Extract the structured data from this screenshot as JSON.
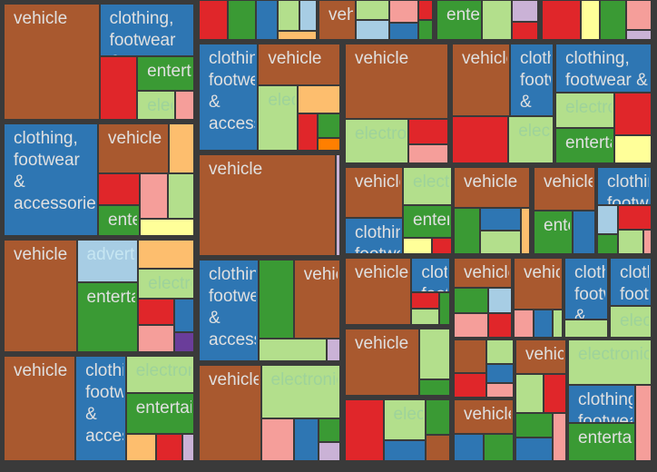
{
  "chart_data": {
    "type": "treemap",
    "title": "",
    "colors": {
      "vehicle": "#a9592f",
      "clothing": "#2e76b3",
      "entertainment": "#3a9a34",
      "electronics": "#b3df8c",
      "advertising": "#a7cde4",
      "red": "#e0262a",
      "pink": "#f59e9a",
      "orange": "#fdbe6e",
      "yellow": "#ffff99",
      "purple": "#6a3d9a",
      "lavender": "#cab2d6",
      "darkorange": "#ff7f00"
    },
    "label_colors": {
      "vehicle": "#e0e0e0",
      "clothing": "#e0e0e0",
      "entertainment": "#e0e0e0",
      "electronics": "#9ed39a",
      "advertising": "#c6e6f2"
    },
    "labels": {
      "vehicle": "vehicle",
      "clothing": "clothing, footwear & accessories",
      "entertainment": "entertainment",
      "electronics": "electronics",
      "advertising": "advertising"
    },
    "panels": [
      {
        "group": 1,
        "tiles": [
          {
            "cat": "vehicle",
            "value": 360
          },
          {
            "cat": "clothing",
            "value": 160
          },
          {
            "cat": "red",
            "value": 78
          },
          {
            "cat": "entertainment",
            "value": 64
          },
          {
            "cat": "electronics",
            "value": 36
          },
          {
            "cat": "pink",
            "value": 18
          }
        ]
      },
      {
        "group": 2,
        "tiles": [
          {
            "cat": "clothing",
            "value": 330
          },
          {
            "cat": "vehicle",
            "value": 110
          },
          {
            "cat": "orange",
            "value": 40
          },
          {
            "cat": "red",
            "value": 40
          },
          {
            "cat": "entertainment",
            "value": 40
          },
          {
            "cat": "pink",
            "value": 40
          },
          {
            "cat": "electronics",
            "value": 36
          },
          {
            "cat": "yellow",
            "value": 30
          }
        ]
      },
      {
        "group": 3,
        "tiles": [
          {
            "cat": "vehicle",
            "value": 250
          },
          {
            "cat": "advertising",
            "value": 80
          },
          {
            "cat": "entertainment",
            "value": 130
          },
          {
            "cat": "orange",
            "value": 50
          },
          {
            "cat": "electronics",
            "value": 50
          },
          {
            "cat": "red",
            "value": 30
          },
          {
            "cat": "pink",
            "value": 30
          },
          {
            "cat": "clothing",
            "value": 20
          },
          {
            "cat": "purple",
            "value": 12
          }
        ]
      },
      {
        "group": 4,
        "tiles": [
          {
            "cat": "vehicle",
            "value": 270
          },
          {
            "cat": "clothing",
            "value": 190
          },
          {
            "cat": "electronics",
            "value": 90
          },
          {
            "cat": "entertainment",
            "value": 100
          },
          {
            "cat": "orange",
            "value": 30
          },
          {
            "cat": "red",
            "value": 25
          },
          {
            "cat": "lavender",
            "value": 12
          }
        ]
      },
      {
        "group": 5,
        "tiles": [
          {
            "cat": "red",
            "value": 40
          },
          {
            "cat": "entertainment",
            "value": 38
          },
          {
            "cat": "clothing",
            "value": 30
          },
          {
            "cat": "electronics",
            "value": 24
          },
          {
            "cat": "advertising",
            "value": 18
          },
          {
            "cat": "orange",
            "value": 12
          }
        ]
      },
      {
        "group": 6,
        "tiles": [
          {
            "cat": "vehicle",
            "value": 90
          },
          {
            "cat": "electronics",
            "value": 40
          },
          {
            "cat": "advertising",
            "value": 40
          },
          {
            "cat": "pink",
            "value": 40
          },
          {
            "cat": "clothing",
            "value": 30
          },
          {
            "cat": "red",
            "value": 18
          },
          {
            "cat": "entertainment",
            "value": 18
          }
        ]
      },
      {
        "group": 7,
        "tiles": [
          {
            "cat": "entertainment",
            "value": 45
          },
          {
            "cat": "electronics",
            "value": 30
          },
          {
            "cat": "lavender",
            "value": 14
          },
          {
            "cat": "red",
            "value": 12
          }
        ]
      },
      {
        "group": 8,
        "tiles": [
          {
            "cat": "red",
            "value": 60
          },
          {
            "cat": "yellow",
            "value": 30
          },
          {
            "cat": "entertainment",
            "value": 40
          },
          {
            "cat": "pink",
            "value": 30
          },
          {
            "cat": "lavender",
            "value": 10
          }
        ]
      },
      {
        "group": 9,
        "tiles": [
          {
            "cat": "clothing",
            "value": 220
          },
          {
            "cat": "vehicle",
            "value": 120
          },
          {
            "cat": "electronics",
            "value": 90
          },
          {
            "cat": "orange",
            "value": 40
          },
          {
            "cat": "red",
            "value": 25
          },
          {
            "cat": "entertainment",
            "value": 20
          },
          {
            "cat": "darkorange",
            "value": 10
          }
        ]
      },
      {
        "group": 10,
        "tiles": [
          {
            "cat": "vehicle",
            "value": 360
          },
          {
            "cat": "lavender",
            "value": 12
          }
        ]
      },
      {
        "group": 11,
        "tiles": [
          {
            "cat": "clothing",
            "value": 200
          },
          {
            "cat": "entertainment",
            "value": 90
          },
          {
            "cat": "vehicle",
            "value": 120
          },
          {
            "cat": "electronics",
            "value": 50
          },
          {
            "cat": "lavender",
            "value": 10
          }
        ]
      },
      {
        "group": 12,
        "tiles": [
          {
            "cat": "vehicle",
            "value": 170
          },
          {
            "cat": "electronics",
            "value": 120
          },
          {
            "cat": "pink",
            "value": 40
          },
          {
            "cat": "clothing",
            "value": 30
          },
          {
            "cat": "entertainment",
            "value": 15
          },
          {
            "cat": "lavender",
            "value": 12
          }
        ]
      },
      {
        "group": 13,
        "tiles": [
          {
            "cat": "vehicle",
            "value": 300
          },
          {
            "cat": "electronics",
            "value": 110
          },
          {
            "cat": "red",
            "value": 40
          },
          {
            "cat": "pink",
            "value": 30
          }
        ]
      },
      {
        "group": 14,
        "tiles": [
          {
            "cat": "vehicle",
            "value": 110
          },
          {
            "cat": "clothing",
            "value": 80
          },
          {
            "cat": "electronics",
            "value": 70
          },
          {
            "cat": "entertainment",
            "value": 60
          },
          {
            "cat": "yellow",
            "value": 18
          },
          {
            "cat": "red",
            "value": 12
          }
        ]
      },
      {
        "group": 15,
        "tiles": [
          {
            "cat": "vehicle",
            "value": 200
          },
          {
            "cat": "clothing",
            "value": 60
          },
          {
            "cat": "red",
            "value": 20
          },
          {
            "cat": "electronics",
            "value": 20
          },
          {
            "cat": "entertainment",
            "value": 16
          }
        ]
      },
      {
        "group": 16,
        "tiles": [
          {
            "cat": "vehicle",
            "value": 190
          },
          {
            "cat": "electronics",
            "value": 60
          },
          {
            "cat": "entertainment",
            "value": 20
          }
        ]
      },
      {
        "group": 17,
        "tiles": [
          {
            "cat": "red",
            "value": 110
          },
          {
            "cat": "electronics",
            "value": 80
          },
          {
            "cat": "clothing",
            "value": 40
          },
          {
            "cat": "entertainment",
            "value": 40
          },
          {
            "cat": "vehicle",
            "value": 30
          }
        ]
      },
      {
        "group": 18,
        "tiles": [
          {
            "cat": "vehicle",
            "value": 80
          },
          {
            "cat": "clothing",
            "value": 60
          },
          {
            "cat": "red",
            "value": 50
          },
          {
            "cat": "electronics",
            "value": 40
          }
        ]
      },
      {
        "group": 19,
        "tiles": [
          {
            "cat": "clothing",
            "value": 90
          },
          {
            "cat": "electronics",
            "value": 40
          },
          {
            "cat": "entertainment",
            "value": 40
          },
          {
            "cat": "red",
            "value": 30
          },
          {
            "cat": "yellow",
            "value": 20
          }
        ]
      },
      {
        "group": 20,
        "tiles": [
          {
            "cat": "vehicle",
            "value": 100
          },
          {
            "cat": "entertainment",
            "value": 40
          },
          {
            "cat": "clothing",
            "value": 30
          },
          {
            "cat": "electronics",
            "value": 30
          },
          {
            "cat": "orange",
            "value": 14
          }
        ]
      },
      {
        "group": 21,
        "tiles": [
          {
            "cat": "vehicle",
            "value": 110
          },
          {
            "cat": "entertainment",
            "value": 70
          },
          {
            "cat": "clothing",
            "value": 40
          }
        ]
      },
      {
        "group": 22,
        "tiles": [
          {
            "cat": "clothing",
            "value": 100
          },
          {
            "cat": "advertising",
            "value": 30
          },
          {
            "cat": "entertainment",
            "value": 20
          },
          {
            "cat": "red",
            "value": 40
          },
          {
            "cat": "electronics",
            "value": 30
          },
          {
            "cat": "pink",
            "value": 10
          }
        ]
      },
      {
        "group": 23,
        "tiles": [
          {
            "cat": "vehicle",
            "value": 90
          },
          {
            "cat": "pink",
            "value": 20
          },
          {
            "cat": "clothing",
            "value": 20
          },
          {
            "cat": "electronics",
            "value": 10
          }
        ]
      },
      {
        "group": 24,
        "tiles": [
          {
            "cat": "clothing",
            "value": 140
          },
          {
            "cat": "electronics",
            "value": 40
          }
        ]
      },
      {
        "group": 25,
        "tiles": [
          {
            "cat": "clothing",
            "value": 60
          },
          {
            "cat": "electronics",
            "value": 40
          }
        ]
      },
      {
        "group": 26,
        "tiles": [
          {
            "cat": "vehicle",
            "value": 60
          },
          {
            "cat": "entertainment",
            "value": 30
          },
          {
            "cat": "pink",
            "value": 30
          },
          {
            "cat": "advertising",
            "value": 20
          },
          {
            "cat": "red",
            "value": 20
          }
        ]
      },
      {
        "group": 27,
        "tiles": [
          {
            "cat": "vehicle",
            "value": 40
          },
          {
            "cat": "red",
            "value": 30
          },
          {
            "cat": "electronics",
            "value": 25
          },
          {
            "cat": "clothing",
            "value": 20
          },
          {
            "cat": "pink",
            "value": 15
          }
        ]
      },
      {
        "group": 28,
        "tiles": [
          {
            "cat": "vehicle",
            "value": 40
          },
          {
            "cat": "electronics",
            "value": 25
          },
          {
            "cat": "red",
            "value": 20
          },
          {
            "cat": "entertainment",
            "value": 20
          },
          {
            "cat": "clothing",
            "value": 20
          },
          {
            "cat": "pink",
            "value": 15
          }
        ]
      },
      {
        "group": 29,
        "tiles": [
          {
            "cat": "vehicle",
            "value": 100
          },
          {
            "cat": "clothing",
            "value": 40
          },
          {
            "cat": "entertainment",
            "value": 40
          }
        ]
      },
      {
        "group": 30,
        "tiles": [
          {
            "cat": "electronics",
            "value": 30
          },
          {
            "cat": "clothing",
            "value": 20
          },
          {
            "cat": "entertainment",
            "value": 20
          },
          {
            "cat": "pink",
            "value": 10
          }
        ]
      }
    ]
  }
}
